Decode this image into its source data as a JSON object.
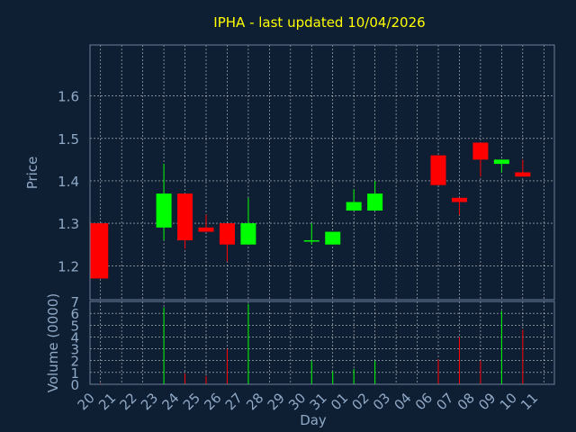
{
  "title": "IPHA - last updated 10/04/2026",
  "colors": {
    "background": "#0f1f33",
    "frame": "#6b7f99",
    "grid": "#ffffff",
    "up": "#00ff00",
    "down": "#ff0000",
    "title": "#ffff00",
    "text": "#8fa9c6"
  },
  "chart_data": [
    {
      "type": "candlestick",
      "ylabel": "Price",
      "xlabel": "Day",
      "ylim": [
        1.12,
        1.72
      ],
      "yticks": [
        1.2,
        1.3,
        1.4,
        1.5,
        1.6
      ],
      "grid": true,
      "categories": [
        "20",
        "21",
        "22",
        "23",
        "24",
        "25",
        "26",
        "27",
        "28",
        "29",
        "30",
        "31",
        "01",
        "02",
        "03",
        "04",
        "06",
        "07",
        "08",
        "09",
        "10",
        "11"
      ],
      "candles": [
        {
          "x": "20",
          "open": 1.3,
          "high": 1.3,
          "low": 1.17,
          "close": 1.17
        },
        {
          "x": "23",
          "open": 1.29,
          "high": 1.44,
          "low": 1.26,
          "close": 1.37
        },
        {
          "x": "24",
          "open": 1.37,
          "high": 1.37,
          "low": 1.24,
          "close": 1.26
        },
        {
          "x": "25",
          "open": 1.29,
          "high": 1.32,
          "low": 1.28,
          "close": 1.28
        },
        {
          "x": "26",
          "open": 1.3,
          "high": 1.3,
          "low": 1.21,
          "close": 1.25
        },
        {
          "x": "27",
          "open": 1.25,
          "high": 1.36,
          "low": 1.25,
          "close": 1.3
        },
        {
          "x": "30",
          "open": 1.26,
          "high": 1.3,
          "low": 1.25,
          "close": 1.26
        },
        {
          "x": "31",
          "open": 1.25,
          "high": 1.28,
          "low": 1.25,
          "close": 1.28
        },
        {
          "x": "01",
          "open": 1.33,
          "high": 1.38,
          "low": 1.33,
          "close": 1.35
        },
        {
          "x": "02",
          "open": 1.33,
          "high": 1.4,
          "low": 1.33,
          "close": 1.37
        },
        {
          "x": "06",
          "open": 1.46,
          "high": 1.46,
          "low": 1.39,
          "close": 1.39
        },
        {
          "x": "07",
          "open": 1.36,
          "high": 1.36,
          "low": 1.32,
          "close": 1.35
        },
        {
          "x": "08",
          "open": 1.49,
          "high": 1.49,
          "low": 1.41,
          "close": 1.45
        },
        {
          "x": "09",
          "open": 1.44,
          "high": 1.45,
          "low": 1.42,
          "close": 1.45
        },
        {
          "x": "10",
          "open": 1.42,
          "high": 1.45,
          "low": 1.41,
          "close": 1.41
        }
      ]
    },
    {
      "type": "bar",
      "ylabel": "Volume (0000)",
      "ylim": [
        0,
        7
      ],
      "yticks": [
        0,
        1,
        2,
        3,
        4,
        5,
        6,
        7
      ],
      "grid": true,
      "categories": [
        "20",
        "21",
        "22",
        "23",
        "24",
        "25",
        "26",
        "27",
        "28",
        "29",
        "30",
        "31",
        "01",
        "02",
        "03",
        "04",
        "06",
        "07",
        "08",
        "09",
        "10",
        "11"
      ],
      "bars": [
        {
          "x": "20",
          "value": 0.1,
          "dir": "down"
        },
        {
          "x": "23",
          "value": 6.5,
          "dir": "up"
        },
        {
          "x": "24",
          "value": 0.9,
          "dir": "down"
        },
        {
          "x": "25",
          "value": 0.7,
          "dir": "down"
        },
        {
          "x": "26",
          "value": 3.0,
          "dir": "down"
        },
        {
          "x": "27",
          "value": 6.8,
          "dir": "up"
        },
        {
          "x": "30",
          "value": 2.0,
          "dir": "up"
        },
        {
          "x": "31",
          "value": 1.1,
          "dir": "up"
        },
        {
          "x": "01",
          "value": 1.3,
          "dir": "up"
        },
        {
          "x": "02",
          "value": 2.0,
          "dir": "up"
        },
        {
          "x": "06",
          "value": 2.1,
          "dir": "down"
        },
        {
          "x": "07",
          "value": 4.0,
          "dir": "down"
        },
        {
          "x": "08",
          "value": 2.0,
          "dir": "down"
        },
        {
          "x": "09",
          "value": 6.2,
          "dir": "up"
        },
        {
          "x": "10",
          "value": 4.6,
          "dir": "down"
        }
      ]
    }
  ]
}
